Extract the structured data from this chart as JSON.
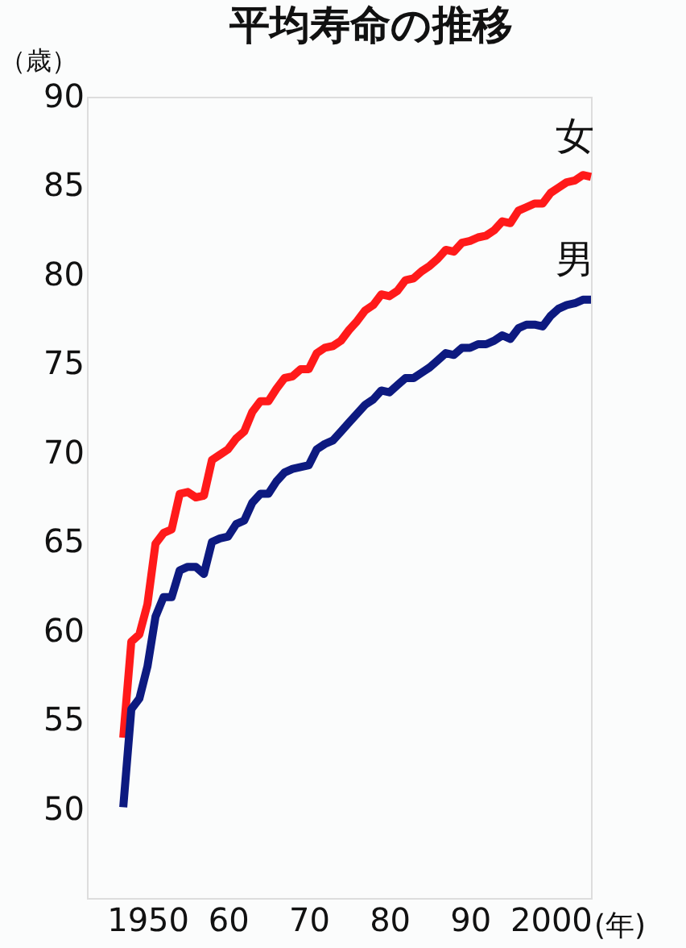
{
  "chart_data": {
    "type": "line",
    "title": "平均寿命の推移",
    "ylabel": "（歳）",
    "xlabel": "(年)",
    "x": [
      1947,
      1948,
      1949,
      1950,
      1951,
      1952,
      1953,
      1954,
      1955,
      1956,
      1957,
      1958,
      1959,
      1960,
      1961,
      1962,
      1963,
      1964,
      1965,
      1966,
      1967,
      1968,
      1969,
      1970,
      1971,
      1972,
      1973,
      1974,
      1975,
      1976,
      1977,
      1978,
      1979,
      1980,
      1981,
      1982,
      1983,
      1984,
      1985,
      1986,
      1987,
      1988,
      1989,
      1990,
      1991,
      1992,
      1993,
      1994,
      1995,
      1996,
      1997,
      1998,
      1999,
      2000,
      2001,
      2002,
      2003,
      2004,
      2005
    ],
    "series": [
      {
        "name": "女",
        "color": "#ff1a1a",
        "values": [
          54.0,
          59.4,
          59.8,
          61.5,
          64.9,
          65.5,
          65.7,
          67.7,
          67.8,
          67.5,
          67.6,
          69.6,
          69.9,
          70.2,
          70.8,
          71.2,
          72.3,
          72.9,
          72.9,
          73.6,
          74.2,
          74.3,
          74.7,
          74.7,
          75.6,
          75.9,
          76.0,
          76.3,
          76.9,
          77.4,
          78.0,
          78.3,
          78.9,
          78.8,
          79.1,
          79.7,
          79.8,
          80.2,
          80.5,
          80.9,
          81.4,
          81.3,
          81.8,
          81.9,
          82.1,
          82.2,
          82.5,
          83.0,
          82.9,
          83.6,
          83.8,
          84.0,
          84.0,
          84.6,
          84.9,
          85.2,
          85.3,
          85.6,
          85.5
        ]
      },
      {
        "name": "男",
        "color": "#0d1a80",
        "values": [
          50.1,
          55.6,
          56.2,
          58.0,
          60.8,
          61.9,
          61.9,
          63.4,
          63.6,
          63.6,
          63.2,
          65.0,
          65.2,
          65.3,
          66.0,
          66.2,
          67.2,
          67.7,
          67.7,
          68.4,
          68.9,
          69.1,
          69.2,
          69.3,
          70.2,
          70.5,
          70.7,
          71.2,
          71.7,
          72.2,
          72.7,
          73.0,
          73.5,
          73.4,
          73.8,
          74.2,
          74.2,
          74.5,
          74.8,
          75.2,
          75.6,
          75.5,
          75.9,
          75.9,
          76.1,
          76.1,
          76.3,
          76.6,
          76.4,
          77.0,
          77.2,
          77.2,
          77.1,
          77.7,
          78.1,
          78.3,
          78.4,
          78.6,
          78.6
        ]
      }
    ],
    "xlim": [
      1942.5,
      2005
    ],
    "xticks": [
      1950,
      {
        "value": 1960,
        "label": "60"
      },
      {
        "value": 1970,
        "label": "70"
      },
      {
        "value": 1980,
        "label": "80"
      },
      {
        "value": 1990,
        "label": "90"
      },
      2000
    ],
    "ylim": [
      45,
      90
    ],
    "yticks": [
      50,
      55,
      60,
      65,
      70,
      75,
      80,
      85,
      90
    ],
    "grid": false,
    "marker": "none",
    "line_style": "solid"
  }
}
